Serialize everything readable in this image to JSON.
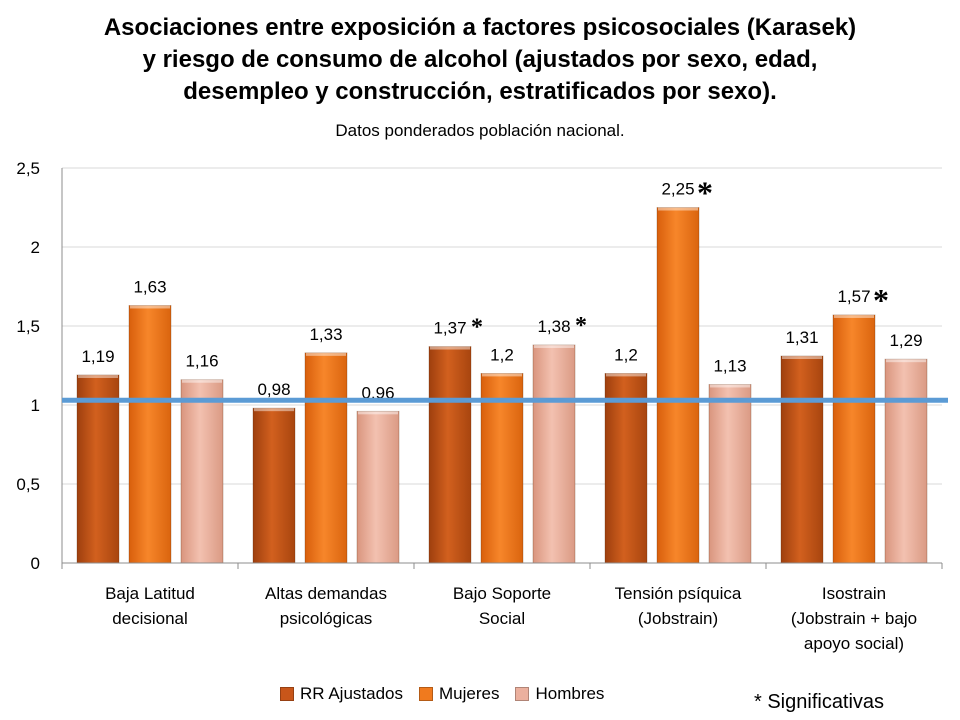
{
  "chart_data": {
    "type": "bar",
    "title_lines": [
      "Asociaciones entre exposición a factores psicosociales (Karasek)",
      "y riesgo de consumo de alcohol (ajustados por sexo, edad,",
      "desempleo y construcción, estratificados por sexo)."
    ],
    "subtitle": "Datos ponderados población nacional.",
    "categories": [
      [
        "Baja Latitud",
        "decisional"
      ],
      [
        "Altas demandas",
        "psicológicas"
      ],
      [
        "Bajo Soporte",
        "Social"
      ],
      [
        "Tensión psíquica",
        "(Jobstrain)"
      ],
      [
        "Isostrain",
        "(Jobstrain + bajo",
        "apoyo social)"
      ]
    ],
    "series": [
      {
        "name": "RR Ajustados",
        "color": "#C8561A",
        "values": [
          1.19,
          0.98,
          1.37,
          1.2,
          1.31
        ],
        "labels": [
          "1,19",
          "0,98",
          "1,37",
          "1,2",
          "1,31"
        ]
      },
      {
        "name": "Mujeres",
        "color": "#F07A1E",
        "values": [
          1.63,
          1.33,
          1.2,
          2.25,
          1.57
        ],
        "labels": [
          "1,63",
          "1,33",
          "1,2",
          "2,25",
          "1,57"
        ]
      },
      {
        "name": "Hombres",
        "color": "#EBB09E",
        "values": [
          1.16,
          0.96,
          1.38,
          1.13,
          1.29
        ],
        "labels": [
          "1,16",
          "0,96",
          "1,38",
          "1,13",
          "1,29"
        ]
      }
    ],
    "significant": [
      {
        "category": 2,
        "series": 0
      },
      {
        "category": 2,
        "series": 2
      },
      {
        "category": 3,
        "series": 1
      },
      {
        "category": 4,
        "series": 1
      }
    ],
    "asterisk": "*",
    "ylim": [
      0,
      2.5
    ],
    "yticks": [
      0,
      0.5,
      1,
      1.5,
      2,
      2.5
    ],
    "ytick_labels": [
      "0",
      "0,5",
      "1",
      "1,5",
      "2",
      "2,5"
    ],
    "reference_line": {
      "value": 1.03,
      "color": "#5B9BD5"
    },
    "grid": true,
    "legend_position": "bottom"
  },
  "note": "* Significativas"
}
